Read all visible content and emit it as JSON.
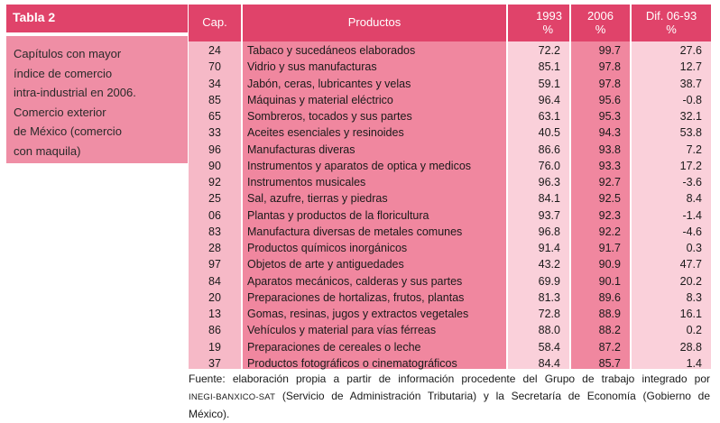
{
  "tag": "Tabla 2",
  "caption": [
    "Capítulos con mayor",
    "índice de comercio",
    "intra-industrial en 2006.",
    "Comercio exterior",
    "de México (comercio",
    "con maquila)"
  ],
  "headers": {
    "cap": "Cap.",
    "productos": "Productos",
    "y1993": "1993",
    "y1993_unit": "%",
    "y2006": "2006",
    "y2006_unit": "%",
    "dif": "Dif. 06-93",
    "dif_unit": "%"
  },
  "rows": [
    {
      "cap": "24",
      "producto": "Tabaco y sucedáneos elaborados",
      "v1993": "72.2",
      "v2006": "99.7",
      "dif": "27.6"
    },
    {
      "cap": "70",
      "producto": "Vidrio y sus manufacturas",
      "v1993": "85.1",
      "v2006": "97.8",
      "dif": "12.7"
    },
    {
      "cap": "34",
      "producto": "Jabón, ceras, lubricantes y velas",
      "v1993": "59.1",
      "v2006": "97.8",
      "dif": "38.7"
    },
    {
      "cap": "85",
      "producto": "Máquinas y material eléctrico",
      "v1993": "96.4",
      "v2006": "95.6",
      "dif": "-0.8"
    },
    {
      "cap": "65",
      "producto": "Sombreros, tocados y sus partes",
      "v1993": "63.1",
      "v2006": "95.3",
      "dif": "32.1"
    },
    {
      "cap": "33",
      "producto": "Aceites esenciales y resinoides",
      "v1993": "40.5",
      "v2006": "94.3",
      "dif": "53.8"
    },
    {
      "cap": "96",
      "producto": "Manufacturas diveras",
      "v1993": "86.6",
      "v2006": "93.8",
      "dif": "7.2"
    },
    {
      "cap": "90",
      "producto": "Instrumentos y aparatos de optica y medicos",
      "v1993": "76.0",
      "v2006": "93.3",
      "dif": "17.2"
    },
    {
      "cap": "92",
      "producto": "Instrumentos musicales",
      "v1993": "96.3",
      "v2006": "92.7",
      "dif": "-3.6"
    },
    {
      "cap": "25",
      "producto": "Sal, azufre, tierras y piedras",
      "v1993": "84.1",
      "v2006": "92.5",
      "dif": "8.4"
    },
    {
      "cap": "06",
      "producto": "Plantas y productos de la floricultura",
      "v1993": "93.7",
      "v2006": "92.3",
      "dif": "-1.4"
    },
    {
      "cap": "83",
      "producto": "Manufactura diversas de metales comunes",
      "v1993": "96.8",
      "v2006": "92.2",
      "dif": "-4.6"
    },
    {
      "cap": "28",
      "producto": "Productos químicos inorgánicos",
      "v1993": "91.4",
      "v2006": "91.7",
      "dif": "0.3"
    },
    {
      "cap": "97",
      "producto": "Objetos de arte y antiguedades",
      "v1993": "43.2",
      "v2006": "90.9",
      "dif": "47.7"
    },
    {
      "cap": "84",
      "producto": "Aparatos mecánicos, calderas y sus partes",
      "v1993": "69.9",
      "v2006": "90.1",
      "dif": "20.2"
    },
    {
      "cap": "20",
      "producto": "Preparaciones de hortalizas, frutos, plantas",
      "v1993": "81.3",
      "v2006": "89.6",
      "dif": "8.3"
    },
    {
      "cap": "13",
      "producto": "Gomas, resinas, jugos y extractos vegetales",
      "v1993": "72.8",
      "v2006": "88.9",
      "dif": "16.1"
    },
    {
      "cap": "86",
      "producto": "Vehículos y material para vías férreas",
      "v1993": "88.0",
      "v2006": "88.2",
      "dif": "0.2"
    },
    {
      "cap": "19",
      "producto": "Preparaciones de cereales o leche",
      "v1993": "58.4",
      "v2006": "87.2",
      "dif": "28.8"
    },
    {
      "cap": "37",
      "producto": "Productos fotográficos o cinematográficos",
      "v1993": "84.4",
      "v2006": "85.7",
      "dif": "1.4"
    }
  ],
  "footnote": {
    "line1": "Fuente: elaboración propia a partir de información procedente del Grupo de trabajo integrado por",
    "line2_sc": "INEGI-BANXICO-SAT",
    "line2_rest": " (Servicio de Administración Tributaria) y la Secretaría de Economía (Gobierno de",
    "line3": "México)."
  },
  "colors": {
    "header": "#e0436a",
    "caption_bg": "#ef8ea5",
    "col_dark": "#f0879f",
    "col_mid": "#f6b9c7",
    "col_light": "#fad0da"
  }
}
